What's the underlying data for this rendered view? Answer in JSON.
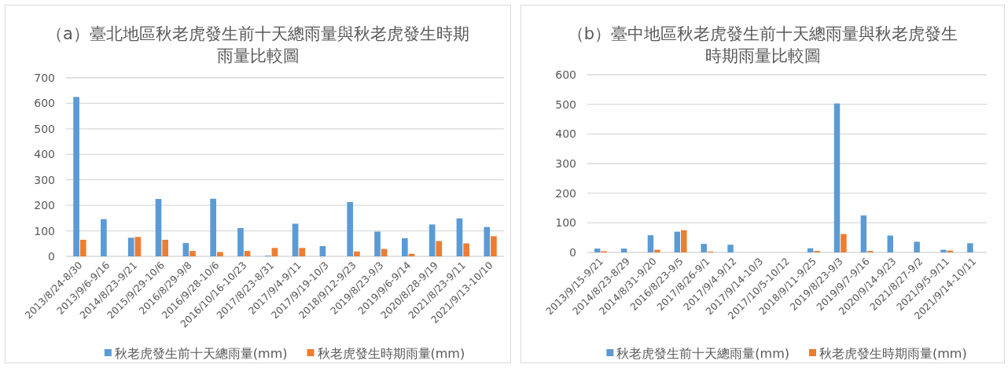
{
  "chart_data": [
    {
      "type": "bar",
      "title": "（a）臺北地區秋老虎發生前十天總雨量與秋老虎發生時期雨量比較圖",
      "categories": [
        "2013/8/24-8/30",
        "2013/9/6-9/16",
        "2014/8/23-9/21",
        "2015/9/29-10/6",
        "2016/8/29-9/8",
        "2016/9/28-10/6",
        "2016/10/16-10/23",
        "2017/8/23-8/31",
        "2017/9/4-9/11",
        "2017/9/19-10/3",
        "2018/9/12-9/23",
        "2019/8/23-9/3",
        "2019/9/6-9/14",
        "2020/8/28-9/19",
        "2021/8/23-9/11",
        "2021/9/13-10/10"
      ],
      "series": [
        {
          "name": "秋老虎發生前十天總雨量(mm)",
          "color": "#5b9bd5",
          "values": [
            625,
            146,
            73,
            225,
            52,
            226,
            111,
            3,
            128,
            40,
            213,
            97,
            71,
            125,
            149,
            115
          ]
        },
        {
          "name": "秋老虎發生時期雨量(mm)",
          "color": "#ed7d31",
          "values": [
            65,
            0,
            76,
            65,
            21,
            17,
            21,
            33,
            33,
            0,
            19,
            29,
            10,
            60,
            51,
            79
          ]
        }
      ],
      "ylim": [
        0,
        700
      ],
      "yticks": [
        0,
        100,
        200,
        300,
        400,
        500,
        600,
        700
      ],
      "grid": "y",
      "legend": "bottom"
    },
    {
      "type": "bar",
      "title": "（b）臺中地區秋老虎發生前十天總雨量與秋老虎發生時期雨量比較圖",
      "categories": [
        "2013/9/15-9/21",
        "2014/8/23-8/29",
        "2014/8/31-9/20",
        "2016/8/23-9/5",
        "2017/8/26-9/1",
        "2017/9/4-9/12",
        "2017/9/14-10/3",
        "2017/10/5-10/12",
        "2018/9/11-9/25",
        "2019/8/23-9/3",
        "2019/9/7-9/16",
        "2020/9/14-9/23",
        "2021/8/27-9/2",
        "2021/9/5-9/11",
        "2021/9/14-10/11"
      ],
      "series": [
        {
          "name": "秋老虎發生前十天總雨量(mm)",
          "color": "#5b9bd5",
          "values": [
            13,
            13,
            58,
            70,
            29,
            26,
            0,
            0,
            14,
            503,
            125,
            57,
            36,
            9,
            31
          ]
        },
        {
          "name": "秋老虎發生時期雨量(mm)",
          "color": "#ed7d31",
          "values": [
            4,
            0,
            9,
            75,
            3,
            0,
            0,
            0,
            5,
            62,
            5,
            0,
            0,
            6,
            0
          ]
        }
      ],
      "ylim": [
        0,
        600
      ],
      "yticks": [
        0,
        100,
        200,
        300,
        400,
        500,
        600
      ],
      "grid": "y",
      "legend": "bottom"
    }
  ]
}
